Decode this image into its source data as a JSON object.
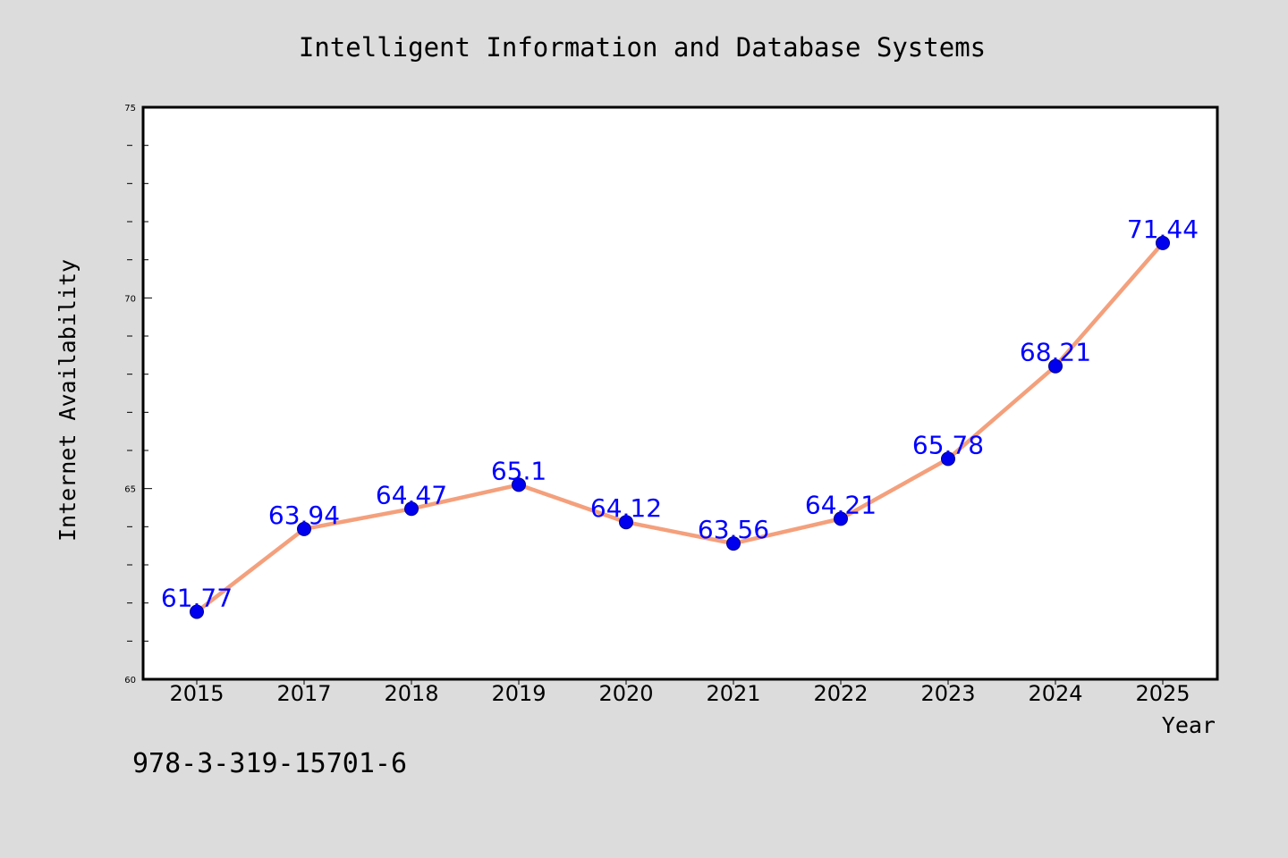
{
  "chart_data": {
    "type": "line",
    "title": "Intelligent Information and Database Systems",
    "xlabel": "Year",
    "ylabel": "Internet Availability",
    "categories": [
      "2015",
      "2017",
      "2018",
      "2019",
      "2020",
      "2021",
      "2022",
      "2023",
      "2024",
      "2025"
    ],
    "series": [
      {
        "values": [
          61.77,
          63.94,
          64.47,
          65.1,
          64.12,
          63.56,
          64.21,
          65.78,
          68.21,
          71.44
        ],
        "data_labels": [
          "61.77",
          "63.94",
          "64.47",
          "65.1",
          "64.12",
          "63.56",
          "64.21",
          "65.78",
          "68.21",
          "71.44"
        ],
        "line_color": "#f4a07c",
        "marker_color": "#0000ee",
        "label_color": "#0000ff"
      }
    ],
    "ylim": [
      60,
      75
    ],
    "yticks": [
      "60",
      "65",
      "70",
      "75"
    ],
    "grid": false,
    "legend": "none"
  },
  "footnote": "978-3-319-15701-6",
  "colors": {
    "background": "#dcdcdc",
    "plot_background": "#ffffff",
    "frame": "#000000"
  }
}
